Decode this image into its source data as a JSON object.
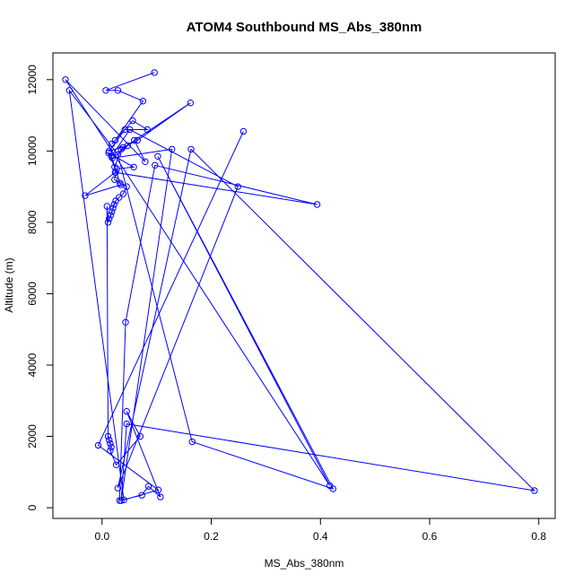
{
  "chart_data": {
    "type": "line",
    "title": "ATOM4 Southbound MS_Abs_380nm",
    "xlabel": "MS_Abs_380nm",
    "ylabel": "Altitude (m)",
    "xlim": [
      -0.09,
      0.83
    ],
    "ylim": [
      -300,
      12750
    ],
    "xticks": [
      0.0,
      0.2,
      0.4,
      0.6,
      0.8
    ],
    "xtick_labels": [
      "0.0",
      "0.2",
      "0.4",
      "0.6",
      "0.8"
    ],
    "yticks": [
      0,
      2000,
      4000,
      6000,
      8000,
      10000,
      12000
    ],
    "ytick_labels": [
      "0",
      "2000",
      "4000",
      "6000",
      "8000",
      "10000",
      "12000"
    ],
    "series": [
      {
        "color": "#0000ff",
        "marker": "open-circle",
        "x": [
          0.096,
          0.007,
          0.029,
          0.075,
          0.024,
          0.018,
          0.056,
          0.083,
          0.042,
          0.013,
          0.047,
          0.038,
          0.065,
          0.162,
          0.035,
          0.023,
          0.012,
          0.058,
          0.027,
          0.025,
          0.023,
          0.033,
          0.045,
          0.039,
          0.031,
          0.025,
          0.022,
          0.02,
          0.018,
          0.016,
          0.013,
          0.011,
          0.009,
          0.011,
          0.013,
          0.015,
          0.017,
          0.015,
          0.026,
          0.07,
          0.045,
          0.107,
          0.085,
          0.073,
          0.032,
          0.043,
          0.097,
          0.394,
          0.024,
          -0.031,
          0.034,
          0.017,
          0.051,
          0.249,
          0.029,
          0.163,
          0.792,
          0.045,
          0.035,
          0.128,
          0.019,
          0.059,
          0.079,
          -0.067,
          0.417,
          0.102,
          0.423,
          0.165,
          0.029,
          -0.06,
          0.04,
          0.103,
          -0.007,
          0.259
        ]
      }
    ]
  }
}
